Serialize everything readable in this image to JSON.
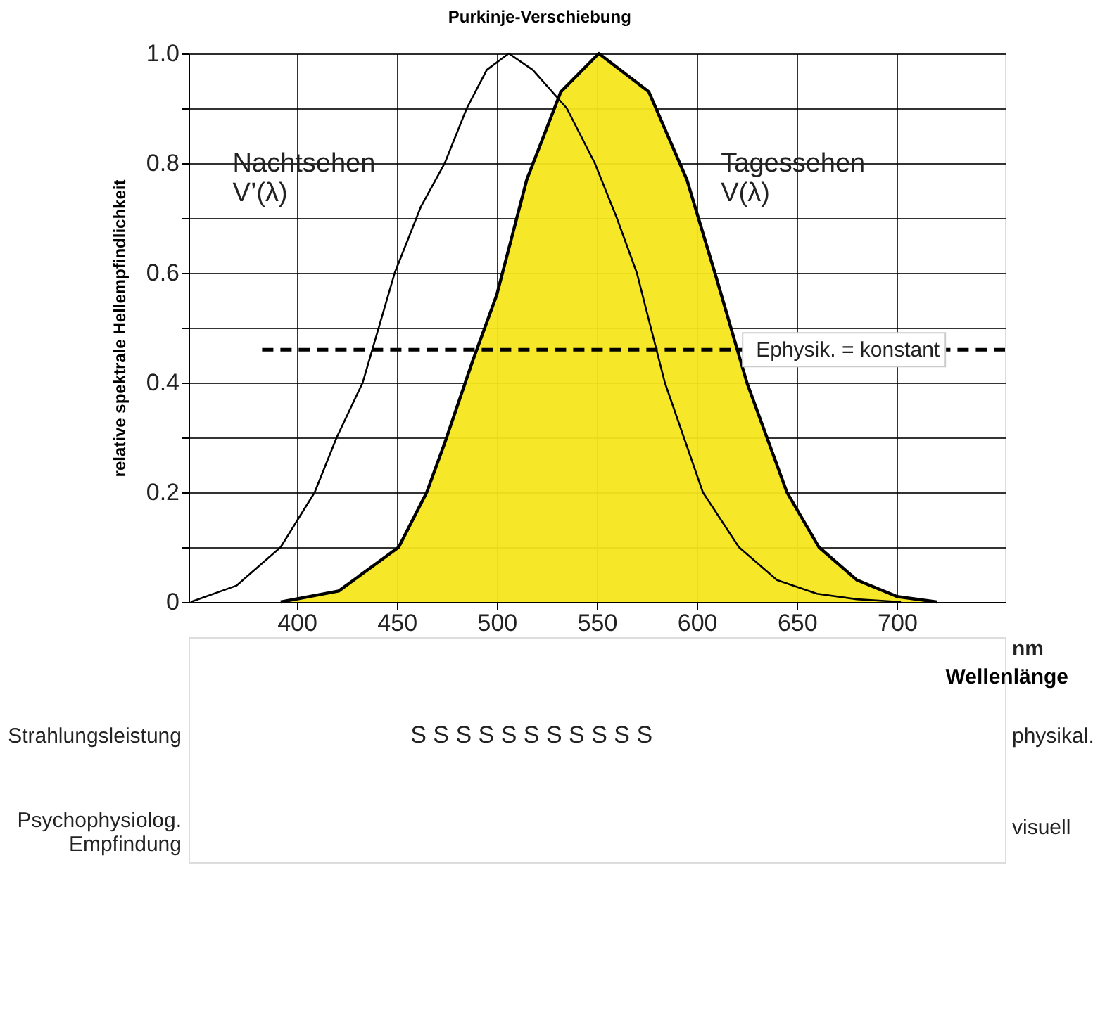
{
  "chart_data": {
    "type": "line",
    "ylabel": "relative spektrale Hellempfindlichkeit",
    "xlabel": "Wellenlänge",
    "xlim": [
      346,
      754
    ],
    "ylim": [
      0,
      1.0
    ],
    "xticks": [
      400,
      450,
      500,
      550,
      600,
      650,
      700
    ],
    "yticks": [
      0,
      {
        "value": 0.1,
        "label": null
      },
      0.2,
      {
        "value": 0.3,
        "label": null
      },
      0.4,
      {
        "value": 0.5,
        "label": null
      },
      0.6,
      {
        "value": 0.7,
        "label": null
      },
      0.8,
      {
        "value": 0.9,
        "label": null
      },
      {
        "value": 1.0,
        "label": "1.0"
      }
    ],
    "grid": true,
    "marker": "none",
    "series": [
      {
        "name": "Nachtsehen V’(λ)",
        "color": "#000000",
        "x": [
          347,
          370,
          392,
          409,
          420,
          433,
          449,
          462,
          474,
          485,
          495,
          506,
          518,
          535,
          549,
          560,
          570,
          584,
          603,
          621,
          640,
          660,
          680,
          702
        ],
        "values": [
          0,
          0.03,
          0.1,
          0.2,
          0.3,
          0.4,
          0.6,
          0.72,
          0.8,
          0.9,
          0.97,
          1.0,
          0.97,
          0.9,
          0.8,
          0.7,
          0.6,
          0.4,
          0.2,
          0.1,
          0.04,
          0.015,
          0.005,
          0
        ]
      },
      {
        "name": "Tagessehen V(λ)",
        "color": "#f5e61e",
        "type": "area",
        "x": [
          392,
          421,
          451,
          465,
          474,
          488,
          500,
          515,
          532,
          551,
          576,
          595,
          609,
          625,
          645,
          661,
          680,
          700,
          720
        ],
        "values": [
          0,
          0.02,
          0.1,
          0.2,
          0.29,
          0.44,
          0.56,
          0.77,
          0.93,
          1.0,
          0.93,
          0.77,
          0.6,
          0.4,
          0.2,
          0.1,
          0.04,
          0.01,
          0
        ]
      }
    ],
    "ref_lines": [
      {
        "axis": "y",
        "value": 0.46,
        "label": "Ephysik. = konstant",
        "line_style": "dashed",
        "color": "#000000"
      }
    ],
    "annotations": [
      "Purkinje-Verschiebung",
      "nm",
      "Strahlungsleistung",
      "S S S S S S S S S S S",
      "physikal.",
      "Psychophysiolog. Empfindung",
      "visuell"
    ]
  }
}
